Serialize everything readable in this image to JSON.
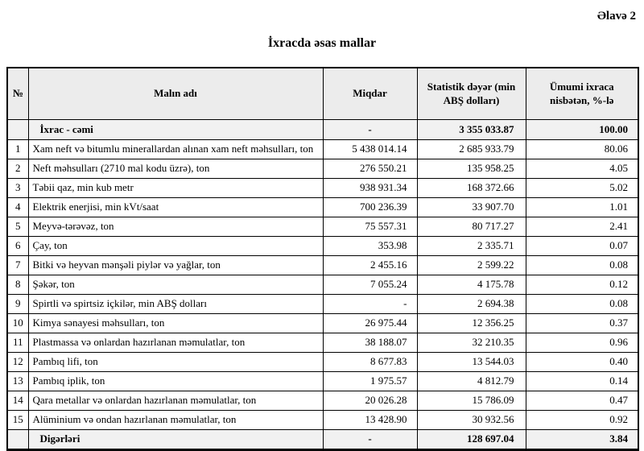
{
  "page": {
    "annex_label": "Əlavə 2",
    "title": "İxracda əsas mallar"
  },
  "table": {
    "headers": {
      "no": "№",
      "name": "Malın adı",
      "quantity": "Miqdar",
      "value": "Statistik dəyər (min ABŞ dolları)",
      "share": "Ümumi ixraca nisbətən, %-lə"
    },
    "rows": [
      {
        "no": "",
        "name": "İxrac - cəmi",
        "quantity": "-",
        "value": "3 355 033.87",
        "share": "100.00",
        "bold": true
      },
      {
        "no": "1",
        "name": "Xam neft və bitumlu minerallardan alınan xam neft məhsulları, ton",
        "quantity": "5 438 014.14",
        "value": "2 685 933.79",
        "share": "80.06",
        "bold": false
      },
      {
        "no": "2",
        "name": "Neft məhsulları (2710 mal kodu üzrə), ton",
        "quantity": "276 550.21",
        "value": "135 958.25",
        "share": "4.05",
        "bold": false
      },
      {
        "no": "3",
        "name": "Təbii qaz, min kub metr",
        "quantity": "938 931.34",
        "value": "168 372.66",
        "share": "5.02",
        "bold": false
      },
      {
        "no": "4",
        "name": "Elektrik enerjisi, min kVt/saat",
        "quantity": "700 236.39",
        "value": "33 907.70",
        "share": "1.01",
        "bold": false
      },
      {
        "no": "5",
        "name": "Meyvə-tərəvəz, ton",
        "quantity": "75 557.31",
        "value": "80 717.27",
        "share": "2.41",
        "bold": false
      },
      {
        "no": "6",
        "name": "Çay, ton",
        "quantity": "353.98",
        "value": "2 335.71",
        "share": "0.07",
        "bold": false
      },
      {
        "no": "7",
        "name": "Bitki və heyvan mənşəli piylər və yağlar, ton",
        "quantity": "2 455.16",
        "value": "2 599.22",
        "share": "0.08",
        "bold": false
      },
      {
        "no": "8",
        "name": "Şəkər, ton",
        "quantity": "7 055.24",
        "value": "4 175.78",
        "share": "0.12",
        "bold": false
      },
      {
        "no": "9",
        "name": "Spirtli və spirtsiz içkilər, min ABŞ dolları",
        "quantity": "-",
        "value": "2 694.38",
        "share": "0.08",
        "bold": false
      },
      {
        "no": "10",
        "name": "Kimya sənayesi məhsulları, ton",
        "quantity": "26 975.44",
        "value": "12 356.25",
        "share": "0.37",
        "bold": false
      },
      {
        "no": "11",
        "name": "Plastmassa və onlardan hazırlanan məmulatlar, ton",
        "quantity": "38 188.07",
        "value": "32 210.35",
        "share": "0.96",
        "bold": false
      },
      {
        "no": "12",
        "name": "Pambıq lifi, ton",
        "quantity": "8 677.83",
        "value": "13 544.03",
        "share": "0.40",
        "bold": false
      },
      {
        "no": "13",
        "name": "Pambıq iplik, ton",
        "quantity": "1 975.57",
        "value": "4 812.79",
        "share": "0.14",
        "bold": false
      },
      {
        "no": "14",
        "name": "Qara metallar və onlardan hazırlanan məmulatlar, ton",
        "quantity": "20 026.28",
        "value": "15 786.09",
        "share": "0.47",
        "bold": false
      },
      {
        "no": "15",
        "name": "Alüminium və ondan hazırlanan məmulatlar, ton",
        "quantity": "13 428.90",
        "value": "30 932.56",
        "share": "0.92",
        "bold": false
      },
      {
        "no": "",
        "name": "Digərləri",
        "quantity": "-",
        "value": "128 697.04",
        "share": "3.84",
        "bold": true
      }
    ]
  },
  "colors": {
    "header_bg": "#ececec",
    "summary_row_bg": "#f1f1f1",
    "border": "#000000",
    "text": "#000000",
    "page_bg": "#ffffff"
  }
}
